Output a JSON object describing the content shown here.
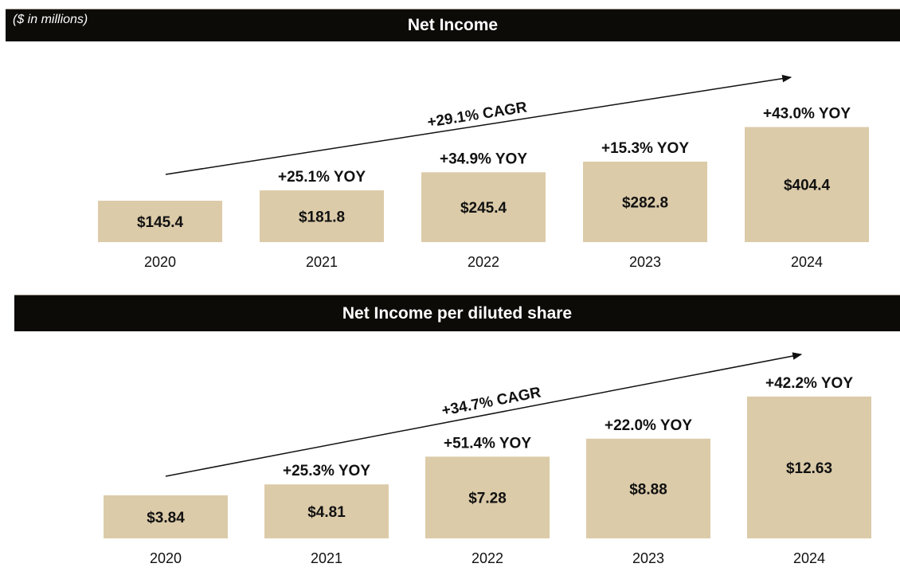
{
  "units_note": "($ in millions)",
  "colors": {
    "bar": "#dccba9",
    "band": "#0d0b08",
    "text": "#111111"
  },
  "chart_data": [
    {
      "type": "bar",
      "title": "Net Income",
      "categories": [
        "2020",
        "2021",
        "2022",
        "2023",
        "2024"
      ],
      "values": [
        145.4,
        181.8,
        245.4,
        282.8,
        404.4
      ],
      "value_labels": [
        "$145.4",
        "$181.8",
        "$245.4",
        "$282.8",
        "$404.4"
      ],
      "yoy_labels": [
        "",
        "+25.1% YOY",
        "+34.9% YOY",
        "+15.3% YOY",
        "+43.0% YOY"
      ],
      "cagr_label": "+29.1% CAGR",
      "ylim": [
        0,
        450
      ]
    },
    {
      "type": "bar",
      "title": "Net Income per diluted share",
      "categories": [
        "2020",
        "2021",
        "2022",
        "2023",
        "2024"
      ],
      "values": [
        3.84,
        4.81,
        7.28,
        8.88,
        12.63
      ],
      "value_labels": [
        "$3.84",
        "$4.81",
        "$7.28",
        "$8.88",
        "$12.63"
      ],
      "yoy_labels": [
        "",
        "+25.3% YOY",
        "+51.4% YOY",
        "+22.0% YOY",
        "+42.2% YOY"
      ],
      "cagr_label": "+34.7% CAGR",
      "ylim": [
        0,
        14
      ]
    }
  ]
}
